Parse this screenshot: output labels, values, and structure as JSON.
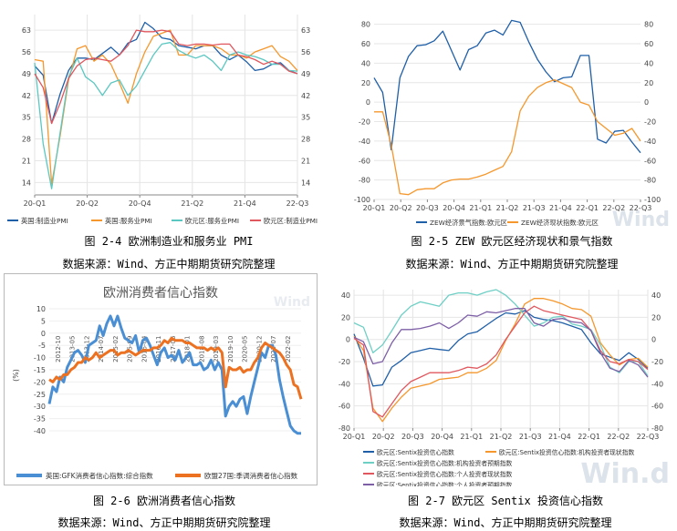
{
  "chart_data": [
    {
      "type": "line",
      "title": "",
      "x_ticks": [
        "20-Q1",
        "20-Q2",
        "20-Q4",
        "21-Q2",
        "21-Q4",
        "22-Q3"
      ],
      "y_ticks": [
        14,
        21,
        28,
        35,
        42,
        49,
        56,
        63
      ],
      "ylim": [
        10,
        68
      ],
      "x": [
        0,
        1,
        2,
        3,
        4,
        5,
        6,
        7,
        8,
        9,
        10,
        11,
        12,
        13,
        14,
        15,
        16,
        17,
        18,
        19,
        20,
        21,
        22,
        23,
        24,
        25,
        26,
        27,
        28,
        29,
        30,
        31
      ],
      "series": [
        {
          "name": "英国:制造业PMI",
          "color": "#1f5fa8",
          "values": [
            51.5,
            48.5,
            33,
            42.5,
            50,
            54,
            54,
            53.5,
            55.5,
            57.5,
            55,
            58.8,
            60,
            65.5,
            63.5,
            60.5,
            60,
            58,
            57.5,
            57,
            58,
            58,
            55,
            53.5,
            55,
            52.8,
            50,
            50.5,
            52,
            52.5,
            50,
            49
          ]
        },
        {
          "name": "英国:服务业PMI",
          "color": "#f5972c",
          "values": [
            53.5,
            53,
            13.5,
            29,
            47,
            57,
            58,
            53,
            55,
            52,
            46,
            39.5,
            49,
            56,
            61,
            62,
            63,
            55,
            55,
            58,
            58,
            58,
            57,
            55,
            55,
            54,
            56,
            57,
            58,
            54.5,
            53,
            50
          ]
        },
        {
          "name": "欧元区:服务业PMI",
          "color": "#5bc7c1",
          "values": [
            52.5,
            26.5,
            12,
            30,
            48,
            54,
            48,
            46,
            42,
            46,
            47,
            42,
            45,
            50,
            55,
            58.5,
            59,
            56.5,
            55,
            54,
            55,
            53,
            50,
            55,
            56,
            55,
            54.5,
            53.5,
            52,
            52,
            50,
            49.8
          ]
        },
        {
          "name": "欧元区:制造业PMI",
          "color": "#e0575e",
          "values": [
            49,
            44.5,
            33,
            39.5,
            47.5,
            51.5,
            53.5,
            54,
            53.5,
            53,
            55,
            58,
            63,
            62.5,
            62.5,
            63,
            62.5,
            58.5,
            58,
            58.5,
            58.5,
            58.2,
            58.5,
            58.5,
            55,
            54.5,
            53.5,
            52,
            53,
            52,
            49.8,
            49
          ]
        }
      ]
    },
    {
      "type": "line",
      "title": "",
      "x_ticks": [
        "20-Q1",
        "20-Q2",
        "20-Q3",
        "20-Q4",
        "21-Q1",
        "21-Q2",
        "21-Q3",
        "21-Q4",
        "22-Q1",
        "22-Q2",
        "22-Q3"
      ],
      "y_ticks": [
        -100,
        -80,
        -60,
        -40,
        -20,
        0,
        20,
        40,
        60,
        80
      ],
      "ylim": [
        -100,
        90
      ],
      "x": [
        0,
        1,
        2,
        3,
        4,
        5,
        6,
        7,
        8,
        9,
        10,
        11,
        12,
        13,
        14,
        15,
        16,
        17,
        18,
        19,
        20,
        21,
        22,
        23,
        24,
        25,
        26,
        27,
        28,
        29,
        30,
        31
      ],
      "series": [
        {
          "name": "ZEW经济景气指数:欧元区",
          "color": "#1f5fa8",
          "values": [
            25,
            10,
            -49,
            25,
            47,
            58,
            59,
            63,
            73,
            53,
            33,
            54,
            58,
            71,
            74,
            69,
            84,
            82,
            62,
            44,
            31,
            21,
            25,
            26,
            48,
            48,
            -38,
            -42,
            -30,
            -29,
            -41,
            -52
          ]
        },
        {
          "name": "ZEW经济现状指数:欧元区",
          "color": "#f5972c",
          "values": [
            -10,
            -10,
            -44,
            -94,
            -95,
            -90,
            -89,
            -89,
            -83,
            -80,
            -79,
            -79,
            -77,
            -74,
            -70,
            -66,
            -51,
            -9,
            6,
            15,
            20,
            23,
            19,
            15,
            0,
            -3,
            -20,
            -27,
            -34,
            -32,
            -27,
            -40
          ]
        }
      ]
    },
    {
      "type": "line",
      "title": "欧洲消费者信心指数",
      "ylabel": "(%)",
      "y_ticks": [
        -40,
        -35,
        -30,
        -25,
        -20,
        -15,
        -10,
        -5,
        0,
        5,
        10
      ],
      "ylim": [
        -40,
        10
      ],
      "x_ticks": [
        "2012-10",
        "2013-05",
        "2013-12",
        "2014-07",
        "2015-02",
        "2015-09",
        "2016-04",
        "2016-11",
        "2017-06",
        "2018-01",
        "2018-08",
        "2019-03",
        "2019-10",
        "2020-05",
        "2020-12",
        "2021-07",
        "2022-02"
      ],
      "series": [
        {
          "name": "英国:GFK消费者信心指数:综合指数",
          "color": "#4a8fd4",
          "values": [
            -29,
            -22,
            -24,
            -18,
            -20,
            -14,
            -11,
            -8,
            -7,
            -9,
            -12,
            -5,
            -4,
            -3,
            3,
            -1,
            4,
            7,
            3,
            7,
            2,
            -2,
            -3,
            -4,
            -1,
            -8,
            -3,
            -2,
            -5,
            -9,
            -13,
            -8,
            -6,
            -10,
            -9,
            -11,
            -7,
            -12,
            -10,
            -8,
            -13,
            -13,
            -12,
            -15,
            -14,
            -11,
            -15,
            -12,
            -15,
            -34,
            -30,
            -28,
            -30,
            -27,
            -26,
            -33,
            -26,
            -20,
            -14,
            -8,
            -10,
            -5,
            -5,
            -9,
            -19,
            -26,
            -32,
            -38,
            -40,
            -41,
            -41
          ]
        },
        {
          "name": "欧盟27国:季调消费者信心指数",
          "color": "#ec7120",
          "values": [
            -19,
            -20,
            -18,
            -19,
            -17,
            -17,
            -15,
            -14,
            -12,
            -12,
            -10,
            -11,
            -10,
            -8,
            -10,
            -9,
            -8,
            -7,
            -7,
            -9,
            -8,
            -8,
            -7,
            -8,
            -9,
            -8,
            -7,
            -7,
            -7,
            -6,
            -6,
            -5,
            -3,
            -4,
            -2,
            -3,
            -3,
            -3,
            -4,
            -4,
            -5,
            -6,
            -6,
            -6,
            -7,
            -6,
            -7,
            -6,
            -8,
            -22,
            -14,
            -15,
            -15,
            -14,
            -16,
            -15,
            -15,
            -12,
            -10,
            -6,
            -4,
            -5,
            -6,
            -7,
            -8,
            -10,
            -13,
            -15,
            -21,
            -22,
            -27
          ]
        }
      ]
    },
    {
      "type": "line",
      "title": "",
      "x_ticks": [
        "20-Q1",
        "20-Q2",
        "20-Q3",
        "20-Q4",
        "21-Q1",
        "21-Q2",
        "21-Q3",
        "21-Q4",
        "22-Q1",
        "22-Q2",
        "22-Q3"
      ],
      "y_ticks": [
        -80,
        -60,
        -40,
        -20,
        0,
        20,
        40
      ],
      "ylim": [
        -80,
        45
      ],
      "x": [
        0,
        1,
        2,
        3,
        4,
        5,
        6,
        7,
        8,
        9,
        10,
        11,
        12,
        13,
        14,
        15,
        16,
        17,
        18,
        19,
        20,
        21,
        22,
        23,
        24,
        25,
        26,
        27,
        28,
        29,
        30,
        31
      ],
      "series": [
        {
          "name": "欧元区:Sentix投资信心指数",
          "color": "#1f5fa8",
          "values": [
            5,
            -17,
            -42,
            -41,
            -25,
            -19,
            -12,
            -10,
            -8,
            -9,
            -10,
            -1,
            5,
            7,
            13,
            19,
            24,
            23,
            26,
            20,
            18,
            17,
            15,
            12,
            9,
            -3,
            -13,
            -16,
            -19,
            -12,
            -18,
            -26
          ]
        },
        {
          "name": "欧元区:Sentix投资信心指数:机构投资者现状指数",
          "color": "#f5972c",
          "values": [
            3,
            -10,
            -62,
            -74,
            -62,
            -52,
            -44,
            -42,
            -40,
            -36,
            -35,
            -34,
            -30,
            -30,
            -26,
            -19,
            -1,
            14,
            32,
            37,
            37,
            35,
            32,
            28,
            27,
            21,
            -3,
            -14,
            -23,
            -18,
            -17,
            -25
          ]
        },
        {
          "name": "欧元区:Sentix投资信心指数:机构投资者预期指数",
          "color": "#6ecfc5",
          "values": [
            15,
            11,
            -12,
            -5,
            8,
            22,
            30,
            34,
            32,
            30,
            40,
            42,
            42,
            40,
            43,
            45,
            40,
            32,
            22,
            12,
            15,
            20,
            21,
            14,
            12,
            9,
            -5,
            -25,
            -30,
            -20,
            -20,
            -33
          ]
        },
        {
          "name": "欧元区:Sentix投资信心指数:个人投资者现状指数",
          "color": "#e0575e",
          "values": [
            1,
            -5,
            -65,
            -70,
            -58,
            -46,
            -38,
            -34,
            -30,
            -30,
            -30,
            -28,
            -25,
            -26,
            -22,
            -14,
            0,
            12,
            24,
            30,
            26,
            24,
            22,
            20,
            18,
            8,
            -10,
            -20,
            -22,
            -18,
            -20,
            -27
          ]
        },
        {
          "name": "欧元区:Sentix投资信心指数:个人投资者预期指数",
          "color": "#7d5fa6",
          "values": [
            2,
            -2,
            -22,
            -20,
            -3,
            9,
            9,
            10,
            12,
            15,
            10,
            15,
            22,
            21,
            25,
            24,
            26,
            28,
            28,
            15,
            12,
            18,
            19,
            16,
            15,
            8,
            -12,
            -26,
            -29,
            -19,
            -23,
            -34
          ]
        }
      ]
    }
  ],
  "watermarks": {
    "p2": "Wind",
    "p3": "Wind",
    "p4": "Win.d"
  },
  "captions": {
    "c1": "图 2-4 欧洲制造业和服务业 PMI",
    "c2": "图 2-5 ZEW 欧元区经济现状和景气指数",
    "c3": "图 2-6 欧洲消费者信心指数",
    "c4": "图 2-7 欧元区 Sentix 投资信心指数",
    "s1": "数据来源：Wind、方正中期期货研究院整理",
    "s2": "数据来源：Wind、方正中期期货研究院整理",
    "s3": "数据来源：Wind、方正中期期货研究院整理",
    "s4": "数据来源：Wind、方正中期期货研究院整理"
  }
}
